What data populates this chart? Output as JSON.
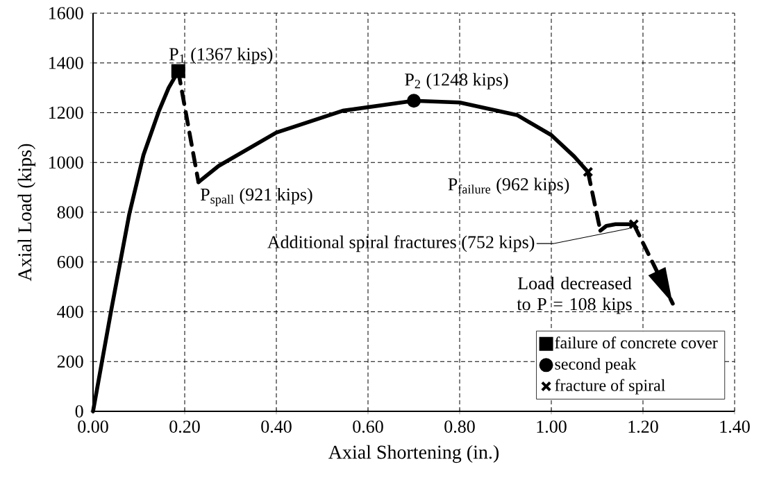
{
  "chart_data": {
    "type": "line",
    "xlabel": "Axial Shortening (in.)",
    "ylabel": "Axial Load (kips)",
    "xlim": [
      0,
      1.4
    ],
    "ylim": [
      0,
      1600
    ],
    "xticks": [
      {
        "value": 0,
        "label": "0.00"
      },
      {
        "value": 0.2,
        "label": "0.20"
      },
      {
        "value": 0.4,
        "label": "0.40"
      },
      {
        "value": 0.6,
        "label": "0.60"
      },
      {
        "value": 0.8,
        "label": "0.80"
      },
      {
        "value": 1.0,
        "label": "1.00"
      },
      {
        "value": 1.2,
        "label": "1.20"
      },
      {
        "value": 1.4,
        "label": "1.40"
      }
    ],
    "yticks": [
      0,
      200,
      400,
      600,
      800,
      1000,
      1200,
      1400,
      1600
    ],
    "grid": true,
    "legend": "bottom right",
    "series": [
      {
        "color": "#000000",
        "line_style": "solid",
        "x": [
          0,
          0.04,
          0.079,
          0.11,
          0.144,
          0.165,
          0.186
        ],
        "values": [
          0,
          410,
          792,
          1030,
          1208,
          1300,
          1367
        ]
      },
      {
        "color": "#000000",
        "line_style": "dashed",
        "x": [
          0.186,
          0.23
        ],
        "values": [
          1367,
          921
        ]
      },
      {
        "color": "#000000",
        "line_style": "solid",
        "x": [
          0.23,
          0.274,
          0.4,
          0.545,
          0.7,
          0.8,
          0.926,
          1.0,
          1.05,
          1.08
        ],
        "values": [
          921,
          986,
          1120,
          1208,
          1248,
          1241,
          1190,
          1110,
          1024,
          962
        ]
      },
      {
        "color": "#000000",
        "line_style": "dashed",
        "x": [
          1.08,
          1.107
        ],
        "values": [
          962,
          726
        ]
      },
      {
        "color": "#000000",
        "line_style": "solid",
        "x": [
          1.107,
          1.12,
          1.14,
          1.18
        ],
        "values": [
          726,
          745,
          752,
          752
        ]
      },
      {
        "color": "#000000",
        "line_style": "dashed",
        "x": [
          1.18,
          1.265
        ],
        "values": [
          752,
          433
        ]
      },
      {
        "type": "scatter",
        "name": "failure of concrete cover",
        "color": "#000000",
        "marker": "square",
        "x": [
          0.186
        ],
        "values": [
          1367
        ]
      },
      {
        "type": "scatter",
        "name": "second peak",
        "color": "#000000",
        "marker": "circle",
        "x": [
          0.7
        ],
        "values": [
          1248
        ]
      },
      {
        "type": "scatter",
        "name": "fracture of spiral",
        "color": "#000000",
        "marker": "cross",
        "x": [
          1.08,
          1.18
        ],
        "values": [
          962,
          752
        ]
      }
    ],
    "annotations": [
      {
        "text": "P$_{1}$ (1367 kips)",
        "x": 0.186,
        "y": 1367
      },
      {
        "text": "P$_{2}$ (1248 kips)",
        "x": 0.7,
        "y": 1248
      },
      {
        "text": "P$_{spall}$ (921 kips)",
        "x": 0.23,
        "y": 921
      },
      {
        "text": "P$_{failure}$ (962 kips)",
        "x": 1.08,
        "y": 962
      },
      {
        "text": "Additional spiral fractures (752 kips)",
        "x": 1.18,
        "y": 752
      },
      {
        "text": "Load decreased to P = 108 kips",
        "x": 1.265,
        "y": 433
      }
    ]
  }
}
